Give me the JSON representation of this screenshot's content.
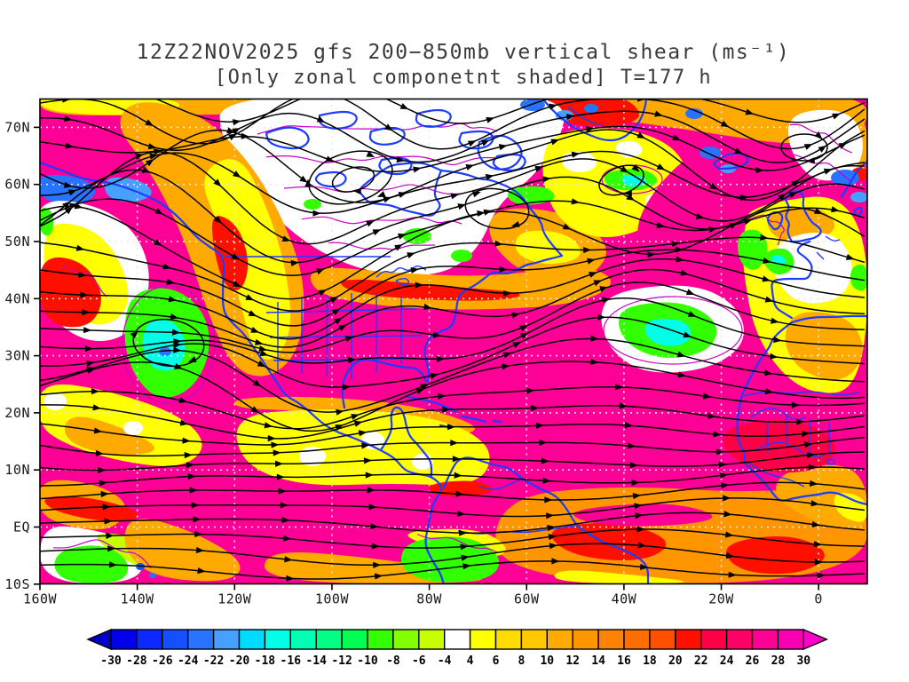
{
  "title": {
    "line1": "12Z22NOV2025 gfs 200−850mb vertical shear (ms⁻¹)",
    "line2": "[Only zonal componetnt shaded] T=177 h"
  },
  "chart_data": {
    "type": "heatmap",
    "title": "12Z22NOV2025 gfs 200-850mb vertical shear (ms⁻¹)",
    "subtitle": "[Only zonal componetnt shaded] T=177 h",
    "model": "gfs",
    "valid_time": "12Z22NOV2025",
    "forecast_hour": "T=177 h",
    "layer": "200-850mb",
    "units": "ms⁻¹",
    "shaded_field": "zonal component of 200-850mb vertical shear",
    "projection": "latlon",
    "x_axis": {
      "label": "longitude",
      "range_deg": [
        -160,
        10
      ],
      "ticks": [
        {
          "label": "160W",
          "deg": -160
        },
        {
          "label": "140W",
          "deg": -140
        },
        {
          "label": "120W",
          "deg": -120
        },
        {
          "label": "100W",
          "deg": -100
        },
        {
          "label": "80W",
          "deg": -80
        },
        {
          "label": "60W",
          "deg": -60
        },
        {
          "label": "40W",
          "deg": -40
        },
        {
          "label": "20W",
          "deg": -20
        },
        {
          "label": "0",
          "deg": 0
        }
      ]
    },
    "y_axis": {
      "label": "latitude",
      "range_deg": [
        -10,
        75
      ],
      "ticks": [
        {
          "label": "70N",
          "deg": 70
        },
        {
          "label": "60N",
          "deg": 60
        },
        {
          "label": "50N",
          "deg": 50
        },
        {
          "label": "40N",
          "deg": 40
        },
        {
          "label": "30N",
          "deg": 30
        },
        {
          "label": "20N",
          "deg": 20
        },
        {
          "label": "10N",
          "deg": 10
        },
        {
          "label": "EQ",
          "deg": 0
        },
        {
          "label": "10S",
          "deg": -10
        }
      ]
    },
    "grid": {
      "style": "dotted",
      "lon_interval_deg": 20,
      "lat_interval_deg": 10,
      "color": "#E8E8E8"
    },
    "colorbar": {
      "extend": "both",
      "tick_labels": [
        "-30",
        "-28",
        "-26",
        "-24",
        "-22",
        "-20",
        "-18",
        "-16",
        "-14",
        "-12",
        "-10",
        "-8",
        "-6",
        "-4",
        "4",
        "6",
        "8",
        "10",
        "12",
        "14",
        "16",
        "18",
        "20",
        "22",
        "24",
        "26",
        "28",
        "30"
      ],
      "colors": [
        "#0000C8",
        "#0000EB",
        "#0A28FF",
        "#1450FF",
        "#2873FF",
        "#46A0FF",
        "#00DCFF",
        "#00FFE6",
        "#00FFB4",
        "#00FF82",
        "#00FF50",
        "#32FF00",
        "#82FF00",
        "#C8FF00",
        "#FFFFFF",
        "#FFFF00",
        "#FFDC00",
        "#FFC800",
        "#FFAA00",
        "#FF9600",
        "#FF8200",
        "#FF6E00",
        "#FF5000",
        "#FF0F00",
        "#FF0046",
        "#FF0064",
        "#FF0096",
        "#FA00B4",
        "#FF00C8"
      ]
    },
    "overlays": [
      {
        "name": "streamlines",
        "description": "black shear-vector streamlines with arrowheads",
        "color": "#000000"
      },
      {
        "name": "coastlines-and-borders",
        "description": "coastlines, lakes, state/country borders",
        "color": "#1E3CFF"
      },
      {
        "name": "contour-lines",
        "description": "thin shear contour squiggles",
        "color": "#C800C8"
      },
      {
        "name": "graticule",
        "description": "white dotted lat/lon grid",
        "color": "#E8E8E8"
      }
    ]
  }
}
